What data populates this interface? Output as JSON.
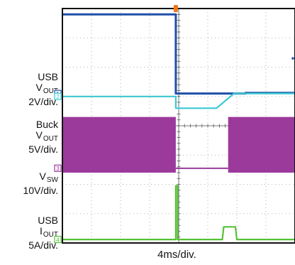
{
  "labels": {
    "ch1": {
      "line1": "USB",
      "line2_main": "V",
      "line2_sub": "OUT",
      "line3": "2V/div."
    },
    "ch2": {
      "line1": "Buck",
      "line2_main": "V",
      "line2_sub": "OUT",
      "line3": "5V/div."
    },
    "ch3": {
      "line1_main": "V",
      "line1_sub": "SW",
      "line2": "10V/div."
    },
    "ch4": {
      "line1": "USB",
      "line2_main": "I",
      "line2_sub": "OUT",
      "line3": "5A/div."
    },
    "timebase": "4ms/div."
  },
  "chart_data": {
    "type": "line",
    "title": "",
    "xlabel": "4ms/div.",
    "x_divisions": 8,
    "y_divisions": 8,
    "grid": true,
    "background": "#ffffff",
    "trigger_time_div": 3.9,
    "channel_markers": [
      "1",
      "2",
      "3",
      "4"
    ],
    "series": [
      {
        "channel": "1",
        "color": "#1f4fa8",
        "scale": "2V/div.",
        "time_div": [
          0,
          3.9,
          3.9,
          6.3,
          6.3,
          8
        ],
        "level_div": [
          7.8,
          7.8,
          5.1,
          5.1,
          5.12,
          5.12
        ]
      },
      {
        "channel": "2",
        "color": "#3cc8d2",
        "scale": "5V/div.",
        "time_div": [
          0,
          3.9,
          3.9,
          5.3,
          5.9,
          8
        ],
        "level_div": [
          5.0,
          5.0,
          4.6,
          4.6,
          5.1,
          5.1
        ]
      },
      {
        "channel": "3",
        "color": "#9b3a9b",
        "scale": "10V/div.",
        "switching": [
          [
            0,
            3.9
          ],
          [
            5.7,
            8
          ]
        ],
        "envelope_div": [
          2.4,
          4.3
        ],
        "idle_time_div": [
          3.9,
          5.7
        ],
        "idle_level_div": 2.55
      },
      {
        "channel": "4",
        "color": "#55c236",
        "scale": "5A/div.",
        "time_div": [
          0,
          3.9,
          3.9,
          3.96,
          3.96,
          5.5,
          5.55,
          5.95,
          6.0,
          8
        ],
        "level_div": [
          0.12,
          0.12,
          1.95,
          1.95,
          0.12,
          0.12,
          0.55,
          0.55,
          0.12,
          0.12
        ]
      }
    ]
  }
}
